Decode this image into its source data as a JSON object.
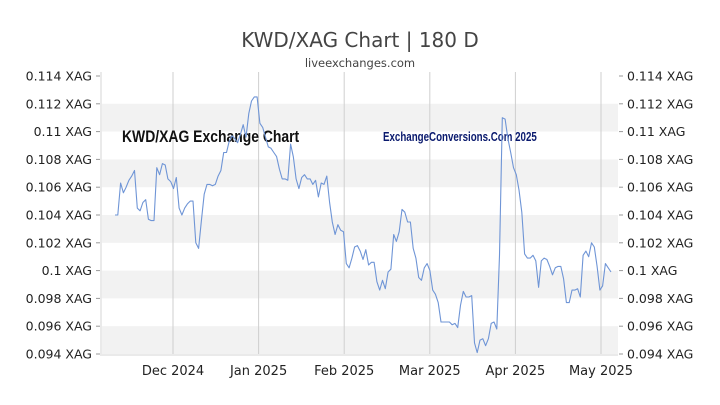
{
  "chart_data": {
    "type": "line",
    "title": "KWD/XAG Chart | 180 D",
    "subtitle": "liveexchanges.com",
    "watermark_left": "KWD/XAG Exchange Chart",
    "watermark_right": "ExchangeConversions.Com 2025",
    "x_tick_labels": [
      "Dec 2024",
      "Jan 2025",
      "Feb 2025",
      "Mar 2025",
      "Apr 2025",
      "May 2025"
    ],
    "y_tick_labels": [
      "0.114 XAG",
      "0.112 XAG",
      "0.11 XAG",
      "0.108 XAG",
      "0.106 XAG",
      "0.104 XAG",
      "0.102 XAG",
      "0.1 XAG",
      "0.098 XAG",
      "0.096 XAG",
      "0.094 XAG"
    ],
    "y_ticks": [
      0.114,
      0.112,
      0.11,
      0.108,
      0.106,
      0.104,
      0.102,
      0.1,
      0.098,
      0.096,
      0.094
    ],
    "ylim": [
      0.094,
      0.114
    ],
    "grid": true,
    "line_color": "#6f95d6",
    "band_color": "#f2f2f2",
    "series": [
      {
        "values": [
          0.104,
          0.104,
          0.1063,
          0.1056,
          0.106,
          0.1065,
          0.1068,
          0.1072,
          0.1045,
          0.1043,
          0.1049,
          0.1051,
          0.1037,
          0.1036,
          0.1036,
          0.1074,
          0.1069,
          0.1077,
          0.1076,
          0.1066,
          0.1064,
          0.1059,
          0.1067,
          0.1045,
          0.104,
          0.1045,
          0.1048,
          0.105,
          0.105,
          0.102,
          0.1016,
          0.1036,
          0.1055,
          0.1062,
          0.1062,
          0.1061,
          0.1062,
          0.1068,
          0.1072,
          0.1085,
          0.1085,
          0.1093,
          0.1097,
          0.1095,
          0.1092,
          0.1098,
          0.1105,
          0.1096,
          0.1113,
          0.1122,
          0.1125,
          0.1125,
          0.1106,
          0.1103,
          0.1096,
          0.1089,
          0.1088,
          0.1085,
          0.1082,
          0.1073,
          0.1066,
          0.1066,
          0.1065,
          0.1091,
          0.1082,
          0.1066,
          0.1059,
          0.1067,
          0.1069,
          0.1066,
          0.1066,
          0.1062,
          0.1065,
          0.1053,
          0.1063,
          0.1062,
          0.1068,
          0.1049,
          0.1035,
          0.1026,
          0.1033,
          0.1029,
          0.1028,
          0.1005,
          0.1002,
          0.1009,
          0.1017,
          0.1018,
          0.1014,
          0.1008,
          0.1015,
          0.1004,
          0.1006,
          0.1006,
          0.0992,
          0.0986,
          0.0993,
          0.0987,
          0.0999,
          0.1001,
          0.1026,
          0.1021,
          0.1028,
          0.1044,
          0.1042,
          0.1035,
          0.1035,
          0.1016,
          0.1009,
          0.0995,
          0.0993,
          0.1002,
          0.1005,
          0.1,
          0.0986,
          0.0983,
          0.0977,
          0.0963,
          0.0963,
          0.0963,
          0.0963,
          0.0961,
          0.0962,
          0.0959,
          0.0975,
          0.0985,
          0.0981,
          0.0981,
          0.0982,
          0.0948,
          0.0941,
          0.095,
          0.0951,
          0.0946,
          0.0951,
          0.0962,
          0.0963,
          0.0958,
          0.1011,
          0.111,
          0.1109,
          0.1095,
          0.1085,
          0.1074,
          0.1069,
          0.1058,
          0.1042,
          0.1012,
          0.1009,
          0.1009,
          0.1011,
          0.1007,
          0.0988,
          0.1007,
          0.1009,
          0.1008,
          0.1003,
          0.0997,
          0.1002,
          0.1003,
          0.1003,
          0.0994,
          0.0977,
          0.0977,
          0.0986,
          0.0986,
          0.0987,
          0.0981,
          0.1011,
          0.1014,
          0.101,
          0.102,
          0.1017,
          0.1003,
          0.0986,
          0.0989,
          0.1005,
          0.1002,
          0.0999
        ]
      }
    ]
  }
}
